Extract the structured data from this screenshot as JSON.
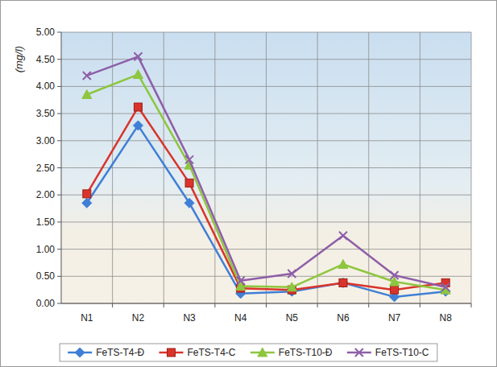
{
  "chart_data": {
    "type": "line",
    "y_label": "(mg/l)",
    "categories": [
      "N1",
      "N2",
      "N3",
      "N4",
      "N5",
      "N6",
      "N7",
      "N8"
    ],
    "series": [
      {
        "name": "FeTS-T4-Đ",
        "color": "#3f7fd6",
        "marker": "diamond",
        "values": [
          1.85,
          3.28,
          1.85,
          0.18,
          0.22,
          0.38,
          0.12,
          0.22
        ]
      },
      {
        "name": "FeTS-T4-C",
        "color": "#d9342b",
        "marker": "square",
        "values": [
          2.02,
          3.62,
          2.22,
          0.28,
          0.25,
          0.38,
          0.25,
          0.38
        ]
      },
      {
        "name": "FeTS-T10-Đ",
        "color": "#8dc63f",
        "marker": "triangle",
        "values": [
          3.85,
          4.22,
          2.55,
          0.32,
          0.3,
          0.72,
          0.4,
          0.25
        ]
      },
      {
        "name": "FeTS-T10-C",
        "color": "#8e5ea8",
        "marker": "x",
        "values": [
          4.2,
          4.55,
          2.65,
          0.42,
          0.55,
          1.25,
          0.52,
          0.3
        ]
      }
    ],
    "ylim": [
      0,
      5
    ],
    "yticks": [
      {
        "value": 0,
        "label": "0.00"
      },
      {
        "value": 0.5,
        "label": "0.50"
      },
      {
        "value": 1,
        "label": "1.00"
      },
      {
        "value": 1.5,
        "label": "1.50"
      },
      {
        "value": 2,
        "label": "2.00"
      },
      {
        "value": 2.5,
        "label": "2.50"
      },
      {
        "value": 3,
        "label": "3.00"
      },
      {
        "value": 3.5,
        "label": "3.50"
      },
      {
        "value": 4,
        "label": "4.00"
      },
      {
        "value": 4.5,
        "label": "4.50"
      },
      {
        "value": 5,
        "label": "5.00"
      }
    ],
    "grid": true,
    "legend": "bottom"
  }
}
